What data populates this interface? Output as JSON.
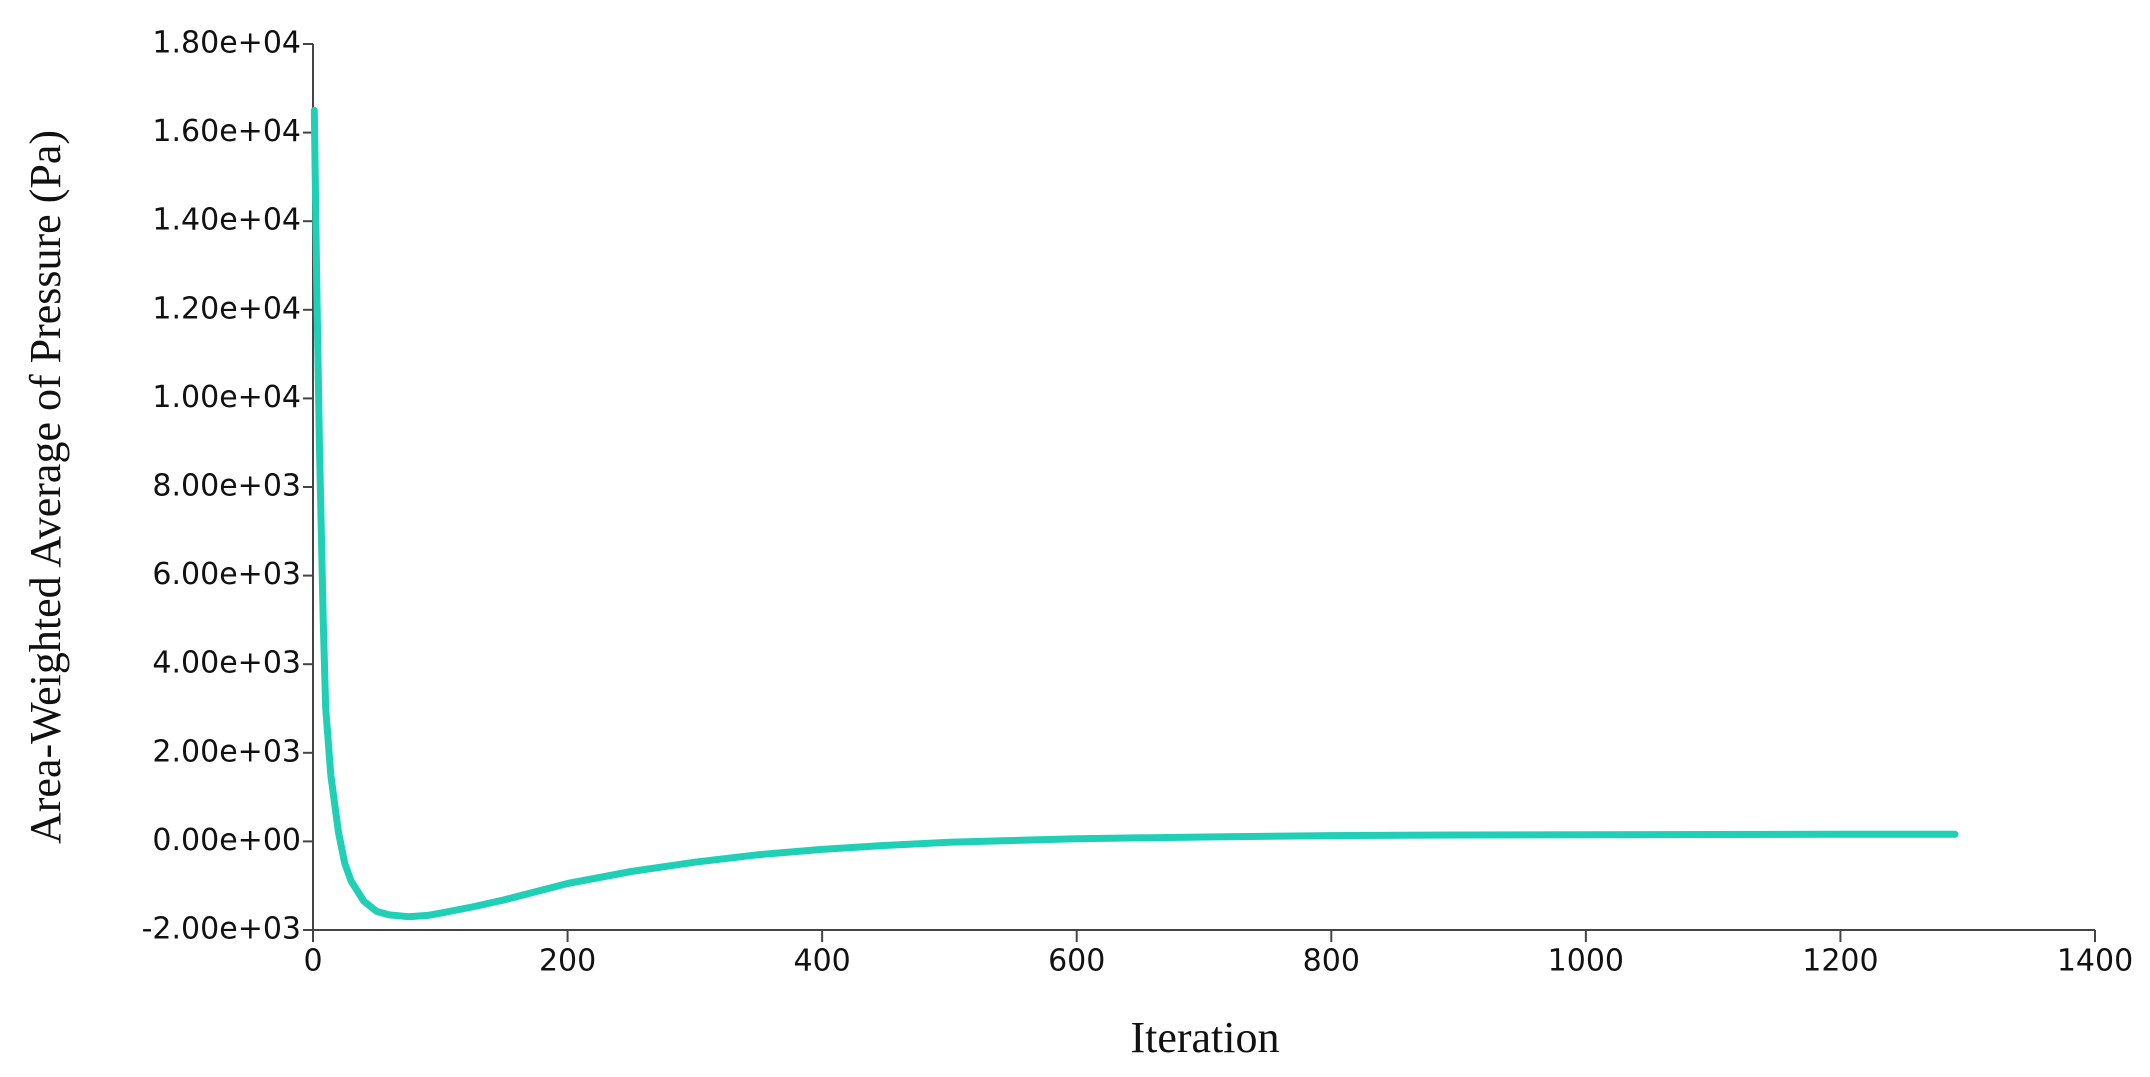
{
  "chart_data": {
    "type": "line",
    "x_label": "Iteration",
    "y_label": "Area-Weighted Average of Pressure (Pa)",
    "x": [
      1,
      3,
      5,
      8,
      10,
      14,
      20,
      25,
      30,
      40,
      50,
      60,
      75,
      90,
      100,
      125,
      150,
      200,
      250,
      300,
      350,
      400,
      450,
      500,
      600,
      700,
      800,
      900,
      1000,
      1100,
      1200,
      1290
    ],
    "series": [
      {
        "name": "Area-Weighted Average of Pressure",
        "color": "#1fcfb6",
        "values": [
          16500,
          12500,
          9000,
          5000,
          3000,
          1500,
          200,
          -500,
          -900,
          -1350,
          -1580,
          -1660,
          -1700,
          -1670,
          -1620,
          -1480,
          -1320,
          -950,
          -680,
          -470,
          -300,
          -180,
          -90,
          -20,
          60,
          100,
          130,
          145,
          150,
          155,
          160,
          160
        ]
      }
    ],
    "xlim": [
      0,
      1400
    ],
    "xticks": [
      0,
      200,
      400,
      600,
      800,
      1000,
      1200,
      1400
    ],
    "ylim": [
      -2000,
      18000
    ],
    "yticks": [
      {
        "value": -2000,
        "label": "-2.00e+03"
      },
      {
        "value": 0,
        "label": "0.00e+00"
      },
      {
        "value": 2000,
        "label": "2.00e+03"
      },
      {
        "value": 4000,
        "label": "4.00e+03"
      },
      {
        "value": 6000,
        "label": "6.00e+03"
      },
      {
        "value": 8000,
        "label": "8.00e+03"
      },
      {
        "value": 10000,
        "label": "1.00e+04"
      },
      {
        "value": 12000,
        "label": "1.20e+04"
      },
      {
        "value": 14000,
        "label": "1.40e+04"
      },
      {
        "value": 16000,
        "label": "1.60e+04"
      },
      {
        "value": 18000,
        "label": "1.80e+04"
      }
    ]
  }
}
